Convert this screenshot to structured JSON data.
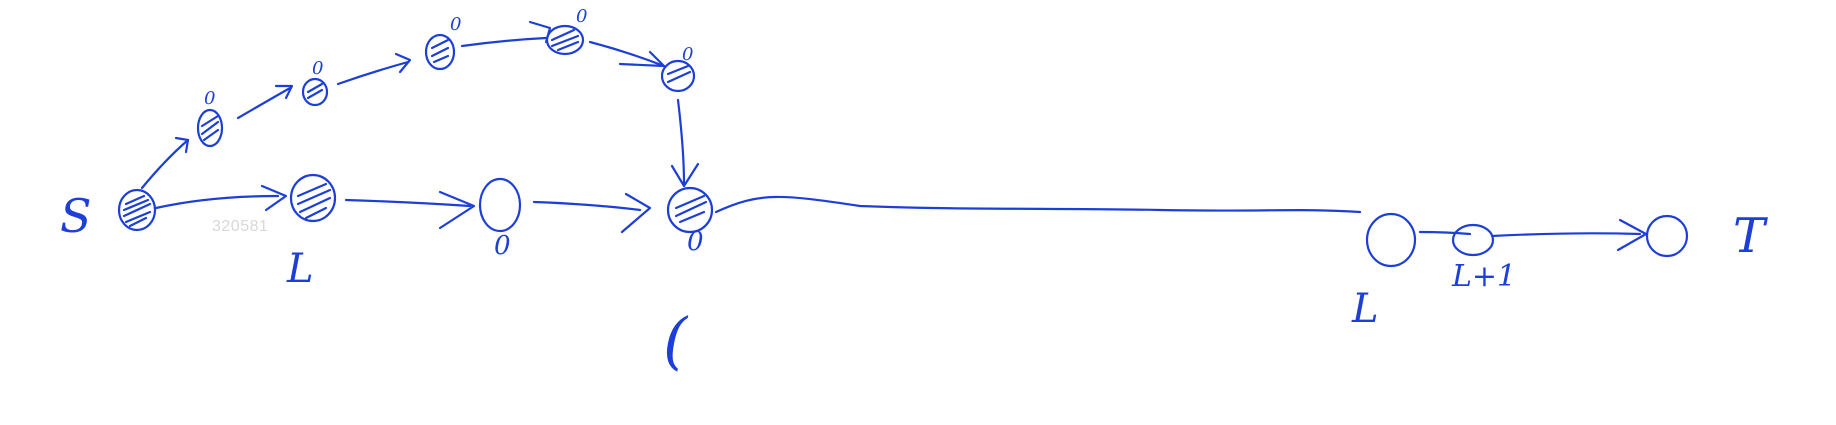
{
  "diagram": {
    "ink_color": "#1d3fd6",
    "watermark_color": "#d8d8d8",
    "labels": {
      "source": "S",
      "sink": "T",
      "under_first_bottom_node": "L",
      "under_second_bottom_node": "0",
      "under_merge_node": "0",
      "below_merge": "(",
      "under_right_node": "L",
      "under_right_node_next": "L+1"
    },
    "top_node_superscripts": [
      "0",
      "0",
      "0",
      "0",
      "0"
    ],
    "watermark": "320581"
  }
}
